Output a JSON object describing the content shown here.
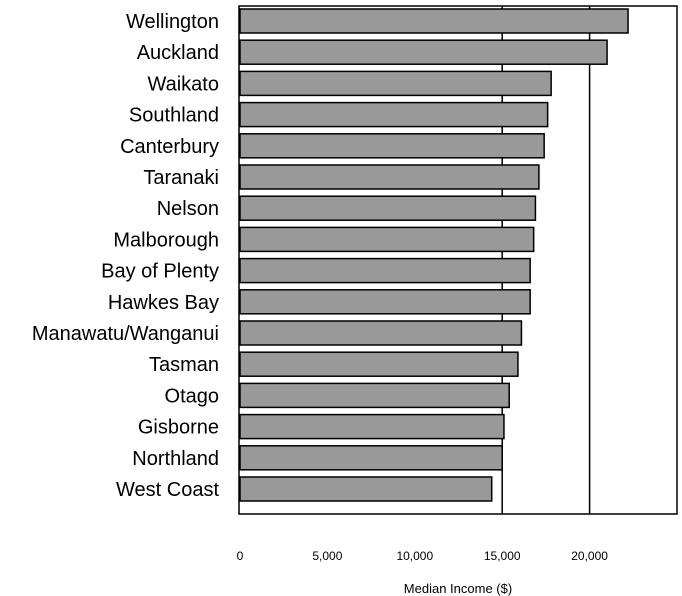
{
  "chart_data": {
    "type": "bar",
    "orientation": "horizontal",
    "categories": [
      "Wellington",
      "Auckland",
      "Waikato",
      "Southland",
      "Canterbury",
      "Taranaki",
      "Nelson",
      "Malborough",
      "Bay of Plenty",
      "Hawkes Bay",
      "Manawatu/Wanganui",
      "Tasman",
      "Otago",
      "Gisborne",
      "Northland",
      "West Coast"
    ],
    "values": [
      22200,
      21000,
      17800,
      17600,
      17400,
      17100,
      16900,
      16800,
      16600,
      16600,
      16100,
      15900,
      15400,
      15100,
      15000,
      14400
    ],
    "xlabel": "Median Income ($)",
    "ylabel": "",
    "xlim": [
      0,
      25000
    ],
    "xticks": [
      0,
      5000,
      10000,
      15000,
      20000
    ],
    "xtick_labels": [
      "0",
      "5,000",
      "10,000",
      "15,000",
      "20,000"
    ],
    "reference_lines": [
      15000,
      20000
    ],
    "grid": false,
    "colors": {
      "bar_fill": "#999999",
      "bar_stroke": "#000000"
    }
  }
}
